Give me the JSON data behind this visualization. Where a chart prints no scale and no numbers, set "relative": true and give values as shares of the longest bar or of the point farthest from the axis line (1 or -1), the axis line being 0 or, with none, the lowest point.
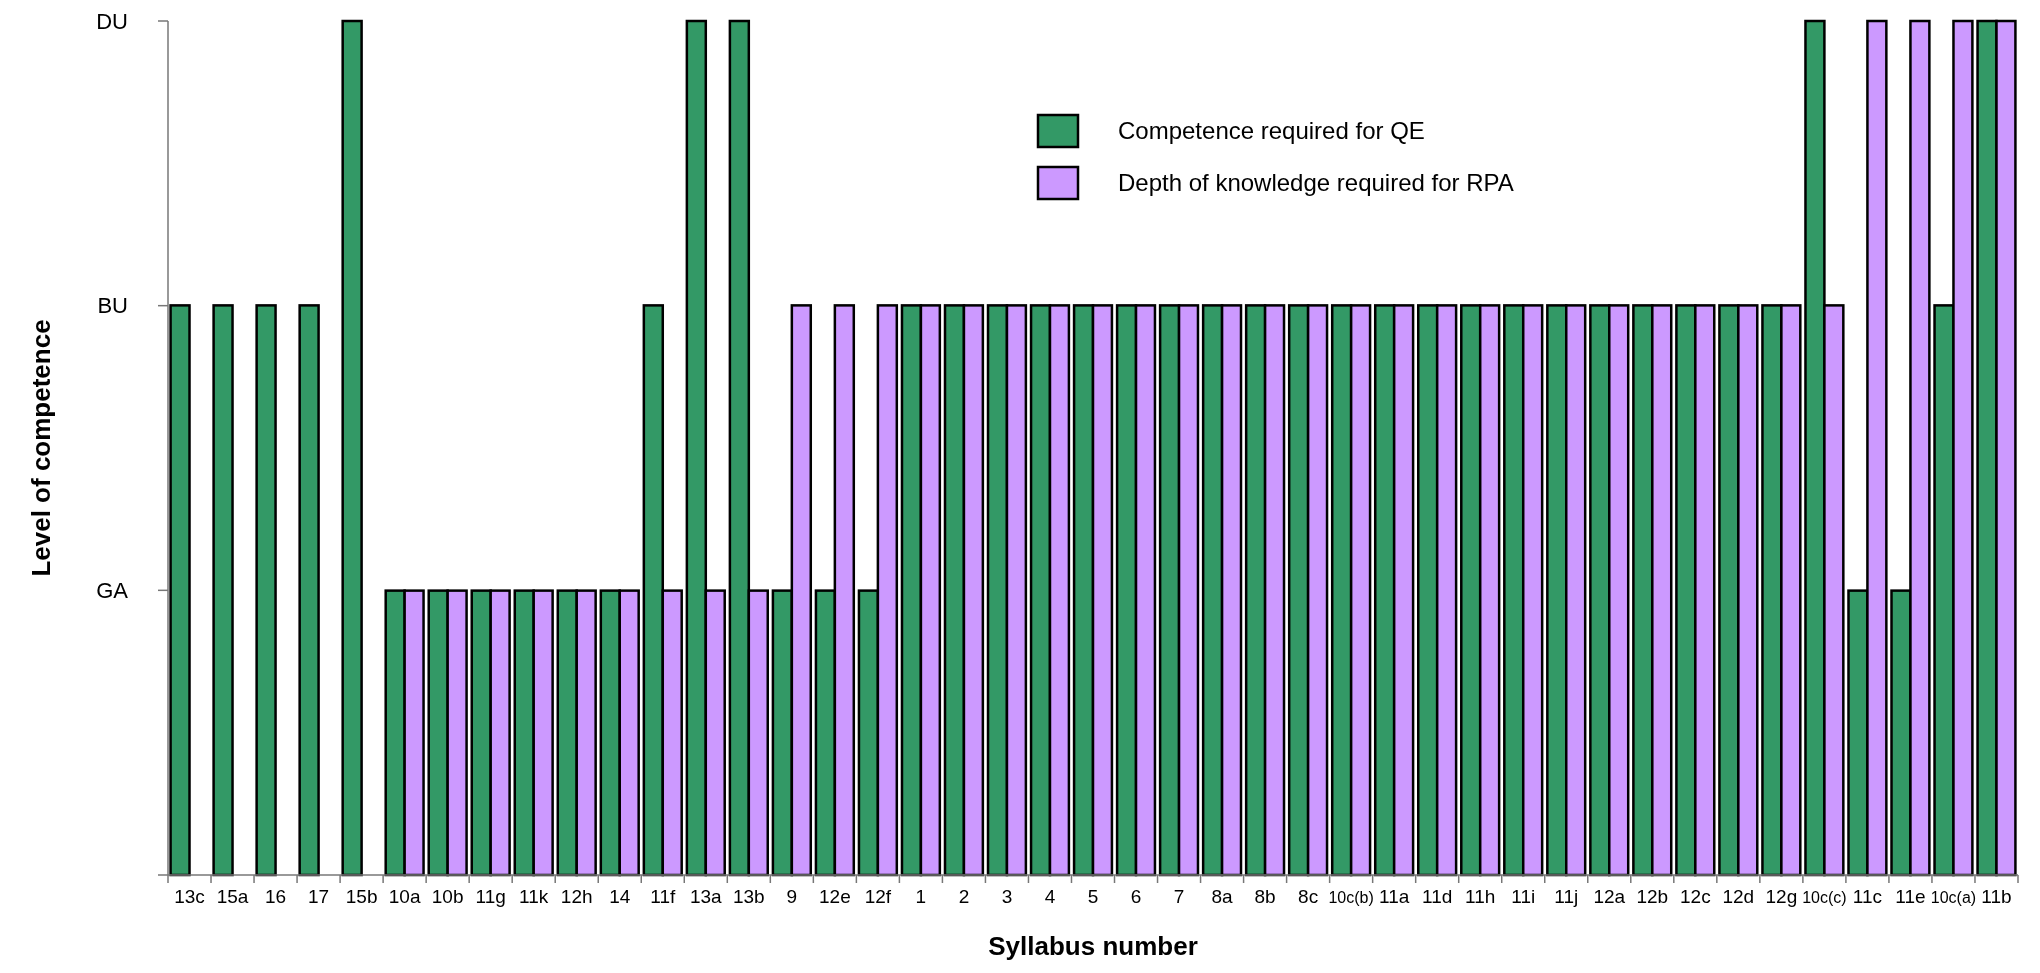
{
  "chart_data": {
    "type": "bar",
    "xlabel": "Syllabus number",
    "ylabel": "Level of competence",
    "relative": true,
    "categories": [
      "13c",
      "15a",
      "16",
      "17",
      "15b",
      "10a",
      "10b",
      "11g",
      "11k",
      "12h",
      "14",
      "11f",
      "13a",
      "13b",
      "9",
      "12e",
      "12f",
      "1",
      "2",
      "3",
      "4",
      "5",
      "6",
      "7",
      "8a",
      "8b",
      "8c",
      "10c(b)",
      "11a",
      "11d",
      "11h",
      "11i",
      "11j",
      "12a",
      "12b",
      "12c",
      "12d",
      "12g",
      "10c(c)",
      "11c",
      "11e",
      "10c(a)",
      "11b"
    ],
    "series": [
      {
        "name": "Competence required for QE",
        "color": "#339966",
        "values": [
          0.667,
          0.667,
          0.667,
          0.667,
          1,
          0.333,
          0.333,
          0.333,
          0.333,
          0.333,
          0.333,
          0.667,
          1,
          1,
          0.333,
          0.333,
          0.333,
          0.667,
          0.667,
          0.667,
          0.667,
          0.667,
          0.667,
          0.667,
          0.667,
          0.667,
          0.667,
          0.667,
          0.667,
          0.667,
          0.667,
          0.667,
          0.667,
          0.667,
          0.667,
          0.667,
          0.667,
          0.667,
          1,
          0.333,
          0.333,
          0.667,
          1
        ]
      },
      {
        "name": "Depth of knowledge required for RPA",
        "color": "#cc99ff",
        "values": [
          null,
          null,
          null,
          null,
          null,
          0.333,
          0.333,
          0.333,
          0.333,
          0.333,
          0.333,
          0.333,
          0.333,
          0.333,
          0.667,
          0.667,
          0.667,
          0.667,
          0.667,
          0.667,
          0.667,
          0.667,
          0.667,
          0.667,
          0.667,
          0.667,
          0.667,
          0.667,
          0.667,
          0.667,
          0.667,
          0.667,
          0.667,
          0.667,
          0.667,
          0.667,
          0.667,
          0.667,
          0.667,
          1,
          1,
          1,
          1
        ]
      }
    ],
    "annotations": [
      "GA",
      "BU",
      "DU"
    ],
    "legend": "top right"
  }
}
